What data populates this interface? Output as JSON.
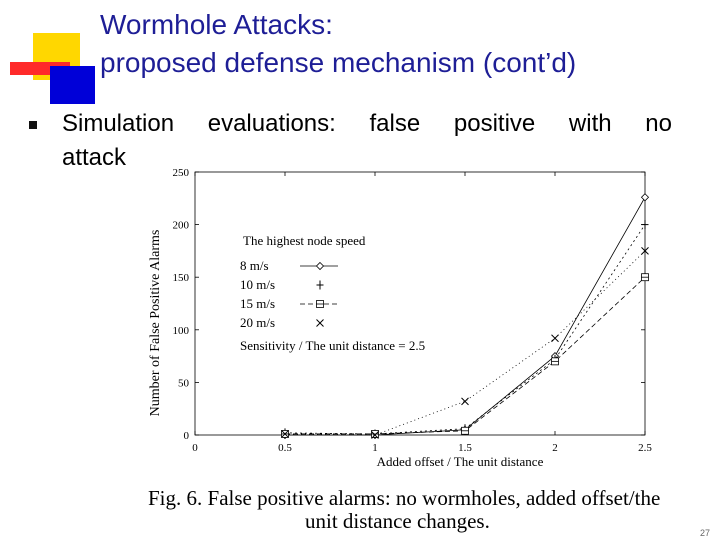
{
  "slide": {
    "title": "Wormhole Attacks:\nproposed defense mechanism (cont’d)",
    "bullet_line1": "Simulation evaluations: false positive with no",
    "bullet_line2": "attack",
    "caption_line1": "Fig. 6. False positive alarms: no wormholes, added offset/the",
    "caption_line2": "unit distance changes.",
    "page_number": "27"
  },
  "chart_data": {
    "type": "line",
    "title": "",
    "xlabel": "Added offset / The unit distance",
    "ylabel": "Number of False Positive Alarms",
    "xlim": [
      0,
      2.5
    ],
    "ylim": [
      0,
      250
    ],
    "xticks": [
      0,
      0.5,
      1,
      1.5,
      2,
      2.5
    ],
    "xtick_labels": [
      "0",
      "0.5",
      "1",
      "1.5",
      "2",
      "2.5"
    ],
    "yticks": [
      0,
      50,
      100,
      150,
      200,
      250
    ],
    "ytick_labels": [
      "0",
      "50",
      "100",
      "150",
      "200",
      "250"
    ],
    "legend_title": "The highest node speed",
    "legend_note": "Sensitivity / The unit distance = 2.5",
    "x": [
      0.5,
      1,
      1.5,
      2,
      2.5
    ],
    "series": [
      {
        "name": "8 m/s",
        "marker": "diamond",
        "dash": "",
        "values": [
          0,
          0,
          5,
          75,
          226
        ]
      },
      {
        "name": "10 m/s",
        "marker": "plus",
        "dash": "2,3",
        "values": [
          2,
          1,
          6,
          72,
          200
        ]
      },
      {
        "name": "15 m/s",
        "marker": "boxed",
        "dash": "5,3",
        "values": [
          1,
          1,
          4,
          70,
          150
        ]
      },
      {
        "name": "20 m/s",
        "marker": "cross",
        "dash": "1,3",
        "values": [
          1,
          0,
          32,
          92,
          175
        ]
      }
    ]
  }
}
